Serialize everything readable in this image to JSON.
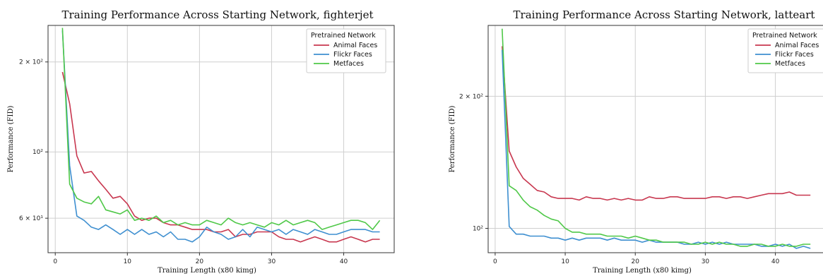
{
  "chart_data": [
    {
      "type": "line",
      "title": "Training Performance Across Starting Network, fighterjet",
      "xlabel": "Training Length (x80 kimg)",
      "ylabel": "Performance (FID)",
      "yscale": "log",
      "xlim": [
        -1,
        47
      ],
      "ylim": [
        46,
        265
      ],
      "xticks": [
        0,
        10,
        20,
        30,
        40
      ],
      "yticks": [
        {
          "value": 200,
          "label": "2 × 10²"
        },
        {
          "value": 100,
          "label": "10²"
        },
        {
          "value": 60,
          "label": "6 × 10¹"
        }
      ],
      "grid": true,
      "legend": {
        "title": "Pretrained Network",
        "placement": "top-right"
      },
      "x": [
        1,
        2,
        3,
        4,
        5,
        6,
        7,
        8,
        9,
        10,
        11,
        12,
        13,
        14,
        15,
        16,
        17,
        18,
        19,
        20,
        21,
        22,
        23,
        24,
        25,
        26,
        27,
        28,
        29,
        30,
        31,
        32,
        33,
        34,
        35,
        36,
        37,
        38,
        39,
        40,
        41,
        42,
        43,
        44,
        45
      ],
      "series": [
        {
          "name": "Animal Faces",
          "color": "#c8374f",
          "values": [
            185,
            145,
            97,
            85,
            86,
            80,
            75,
            70,
            71,
            67,
            61,
            59,
            60,
            60,
            58,
            57,
            57,
            56,
            55,
            55,
            55,
            54,
            54,
            55,
            52,
            53,
            53,
            54,
            54,
            54,
            52,
            51,
            51,
            50,
            51,
            52,
            51,
            50,
            50,
            51,
            52,
            51,
            50,
            51,
            51
          ]
        },
        {
          "name": "Flickr Faces",
          "color": "#3e8fd0",
          "values": [
            255,
            90,
            61,
            59,
            56,
            55,
            57,
            55,
            53,
            55,
            53,
            55,
            53,
            54,
            52,
            54,
            51,
            51,
            50,
            52,
            56,
            54,
            53,
            51,
            52,
            55,
            52,
            56,
            55,
            54,
            55,
            53,
            55,
            54,
            53,
            55,
            54,
            53,
            53,
            54,
            55,
            55,
            55,
            54,
            54
          ]
        },
        {
          "name": "Metfaces",
          "color": "#4fc848",
          "values": [
            260,
            78,
            70,
            68,
            67,
            71,
            64,
            63,
            62,
            64,
            59,
            60,
            59,
            61,
            58,
            59,
            57,
            58,
            57,
            57,
            59,
            58,
            57,
            60,
            58,
            57,
            58,
            57,
            56,
            58,
            57,
            59,
            57,
            58,
            59,
            58,
            55,
            56,
            57,
            58,
            59,
            59,
            58,
            55,
            59
          ]
        }
      ]
    },
    {
      "type": "line",
      "title": "Training Performance Across Starting Network, latteart",
      "xlabel": "Training Length (x80 kimg)",
      "ylabel": "Performance (FID)",
      "yscale": "log",
      "xlim": [
        -1,
        47
      ],
      "ylim": [
        88,
        290
      ],
      "xticks": [
        0,
        10,
        20,
        30,
        40
      ],
      "yticks": [
        {
          "value": 200,
          "label": "2 × 10²"
        },
        {
          "value": 100,
          "label": "10²"
        }
      ],
      "grid": true,
      "legend": {
        "title": "Pretrained Network",
        "placement": "top-right"
      },
      "x": [
        1,
        2,
        3,
        4,
        5,
        6,
        7,
        8,
        9,
        10,
        11,
        12,
        13,
        14,
        15,
        16,
        17,
        18,
        19,
        20,
        21,
        22,
        23,
        24,
        25,
        26,
        27,
        28,
        29,
        30,
        31,
        32,
        33,
        34,
        35,
        36,
        37,
        38,
        39,
        40,
        41,
        42,
        43,
        44,
        45
      ],
      "series": [
        {
          "name": "Animal Faces",
          "color": "#c8374f",
          "values": [
            260,
            150,
            138,
            130,
            126,
            122,
            121,
            118,
            117,
            117,
            117,
            116,
            118,
            117,
            117,
            116,
            117,
            116,
            117,
            116,
            116,
            118,
            117,
            117,
            118,
            118,
            117,
            117,
            117,
            117,
            118,
            118,
            117,
            118,
            118,
            117,
            118,
            119,
            120,
            120,
            120,
            121,
            119,
            119,
            119
          ]
        },
        {
          "name": "Flickr Faces",
          "color": "#3e8fd0",
          "values": [
            255,
            101,
            97,
            97,
            96,
            96,
            96,
            95,
            95,
            94,
            95,
            94,
            95,
            95,
            95,
            94,
            95,
            94,
            94,
            94,
            93,
            94,
            93,
            93,
            93,
            93,
            92,
            92,
            93,
            92,
            93,
            92,
            93,
            92,
            92,
            92,
            92,
            91,
            91,
            92,
            91,
            92,
            90,
            91,
            90
          ]
        },
        {
          "name": "Metfaces",
          "color": "#4fc848",
          "values": [
            285,
            125,
            122,
            116,
            112,
            110,
            107,
            105,
            104,
            100,
            98,
            98,
            97,
            97,
            97,
            96,
            96,
            96,
            95,
            96,
            95,
            94,
            94,
            93,
            93,
            93,
            93,
            92,
            92,
            93,
            92,
            93,
            92,
            92,
            91,
            91,
            92,
            92,
            91,
            91,
            92,
            91,
            91,
            92,
            92
          ]
        }
      ]
    }
  ]
}
